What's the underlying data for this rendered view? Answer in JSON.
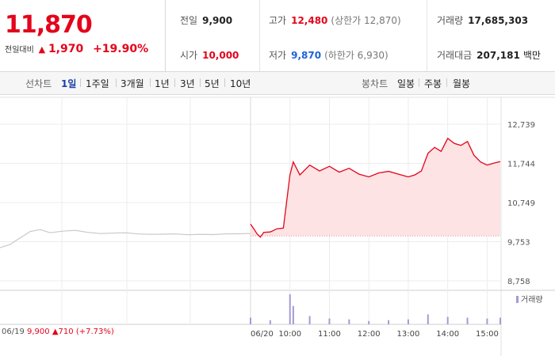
{
  "current_price": "11,870",
  "change": {
    "label": "전일대비",
    "value": "1,970",
    "percent": "+19.90%"
  },
  "stats": {
    "prev_close": {
      "label": "전일",
      "value": "9,900"
    },
    "open": {
      "label": "시가",
      "value": "10,000"
    },
    "high": {
      "label": "고가",
      "value": "12,480",
      "sub": "(상한가 12,870)"
    },
    "low": {
      "label": "저가",
      "value": "9,870",
      "sub": "(하한가 6,930)"
    },
    "volume": {
      "label": "거래량",
      "value": "17,685,303"
    },
    "amount": {
      "label": "거래대금",
      "value": "207,181",
      "unit": "백만"
    }
  },
  "period_bar": {
    "line_label": "선차트",
    "line_periods": [
      "1일",
      "1주일",
      "3개월",
      "1년",
      "3년",
      "5년",
      "10년"
    ],
    "active": "1일",
    "candle_label": "봉차트",
    "candle_periods": [
      "일봉",
      "주봉",
      "월봉"
    ]
  },
  "volume_legend": "거래량",
  "prev_day_info": {
    "date": "06/19",
    "price": "9,900",
    "change": "710",
    "pct": "(+7.73%)"
  },
  "colors": {
    "up": "#e3051b",
    "down": "#1b63d8",
    "prev_line": "#c8c8c8",
    "area": "#fde3e3",
    "volume": "#a49bd6"
  },
  "chart_data": {
    "type": "line",
    "y_ticks": [
      "12,739",
      "11,744",
      "10,749",
      "9,753",
      "8,758"
    ],
    "ylim": [
      8758,
      12739
    ],
    "baseline": 9900,
    "x_labels": [
      "06/20",
      "10:00",
      "11:00",
      "12:00",
      "13:00",
      "14:00",
      "15:00"
    ],
    "previous_day": {
      "date": "06/19",
      "x": [
        0,
        0.04,
        0.08,
        0.12,
        0.16,
        0.2,
        0.25,
        0.3,
        0.35,
        0.4,
        0.45,
        0.5,
        0.55,
        0.6,
        0.65,
        0.7,
        0.75,
        0.8,
        0.85,
        0.9,
        0.95,
        1.0
      ],
      "values": [
        9600,
        9680,
        9850,
        10010,
        10060,
        9980,
        10020,
        10040,
        9990,
        9960,
        9970,
        9980,
        9950,
        9940,
        9945,
        9950,
        9930,
        9940,
        9935,
        9950,
        9955,
        9960
      ]
    },
    "today": {
      "date": "06/20",
      "x": [
        "09:00",
        "09:05",
        "09:10",
        "09:15",
        "09:20",
        "09:30",
        "09:40",
        "09:50",
        "10:00",
        "10:05",
        "10:15",
        "10:30",
        "10:45",
        "11:00",
        "11:15",
        "11:30",
        "11:45",
        "12:00",
        "12:15",
        "12:30",
        "12:45",
        "13:00",
        "13:10",
        "13:20",
        "13:30",
        "13:40",
        "13:50",
        "14:00",
        "14:10",
        "14:20",
        "14:30",
        "14:40",
        "14:50",
        "15:00",
        "15:10",
        "15:20"
      ],
      "values": [
        10200,
        10080,
        9950,
        9870,
        9990,
        10000,
        10080,
        10100,
        11450,
        11780,
        11450,
        11700,
        11550,
        11670,
        11520,
        11620,
        11470,
        11400,
        11500,
        11540,
        11470,
        11400,
        11450,
        11550,
        12000,
        12150,
        12050,
        12380,
        12250,
        12200,
        12300,
        11950,
        11780,
        11700,
        11750,
        11790
      ]
    },
    "volume": {
      "x": [
        "09:00",
        "09:30",
        "10:00",
        "10:05",
        "10:30",
        "11:00",
        "11:30",
        "12:00",
        "12:30",
        "13:00",
        "13:30",
        "14:00",
        "14:30",
        "15:00",
        "15:20"
      ],
      "values": [
        8,
        5,
        36,
        22,
        10,
        7,
        6,
        4,
        5,
        6,
        12,
        9,
        8,
        7,
        8
      ]
    }
  }
}
